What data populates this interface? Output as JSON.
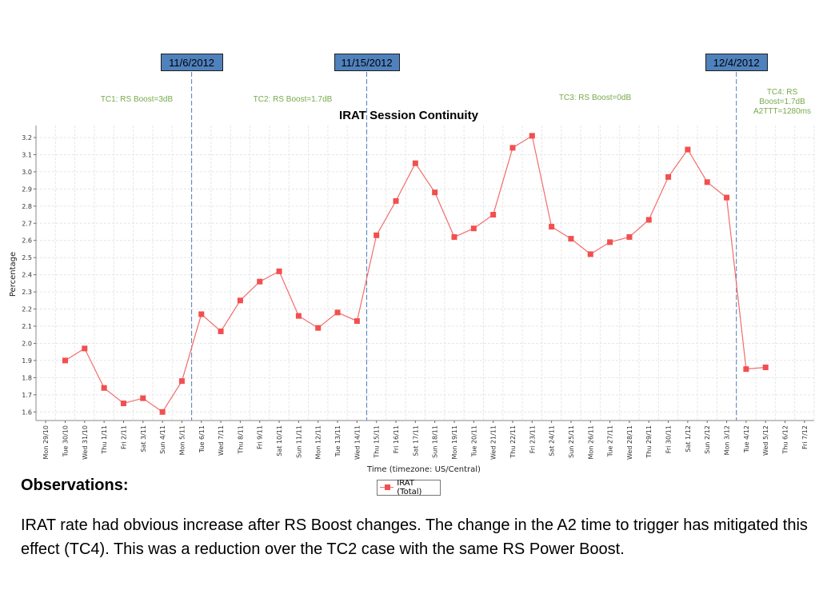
{
  "colors": {
    "series": "#f26d6d",
    "marker": "#f24f4f",
    "markerBox": "#4f81bd",
    "tcText": "#77a94a",
    "vline": "#4f81bd",
    "grid": "#e6e6e6"
  },
  "markers": [
    {
      "label": "11/6/2012",
      "x_index": 8
    },
    {
      "label": "11/15/2012",
      "x_index": 17
    },
    {
      "label": "12/4/2012",
      "x_index": 36
    }
  ],
  "test_cases": [
    {
      "lines": [
        "TC1: RS Boost=3dB"
      ]
    },
    {
      "lines": [
        "TC2: RS Boost=1.7dB"
      ]
    },
    {
      "lines": [
        "TC3: RS Boost=0dB"
      ]
    },
    {
      "lines": [
        "TC4: RS",
        "Boost=1.7dB",
        "A2TTT=1280ms"
      ]
    }
  ],
  "chart_data": {
    "type": "line",
    "title": "IRAT Session Continuity",
    "xlabel": "Time (timezone: US/Central)",
    "ylabel": "Percentage",
    "ylim": [
      1.55,
      3.27
    ],
    "yticks": [
      "1.6",
      "1.7",
      "1.8",
      "1.9",
      "2.0",
      "2.1",
      "2.2",
      "2.3",
      "2.4",
      "2.5",
      "2.6",
      "2.7",
      "2.8",
      "2.9",
      "3.0",
      "3.1",
      "3.2"
    ],
    "grid": true,
    "legend_position": "bottom",
    "categories": [
      "Mon 29/10",
      "Tue 30/10",
      "Wed 31/10",
      "Thu 1/11",
      "Fri 2/11",
      "Sat 3/11",
      "Sun 4/11",
      "Mon 5/11",
      "Tue 6/11",
      "Wed 7/11",
      "Thu 8/11",
      "Fri 9/11",
      "Sat 10/11",
      "Sun 11/11",
      "Mon 12/11",
      "Tue 13/11",
      "Wed 14/11",
      "Thu 15/11",
      "Fri 16/11",
      "Sat 17/11",
      "Sun 18/11",
      "Mon 19/11",
      "Tue 20/11",
      "Wed 21/11",
      "Thu 22/11",
      "Fri 23/11",
      "Sat 24/11",
      "Sun 25/11",
      "Mon 26/11",
      "Tue 27/11",
      "Wed 28/11",
      "Thu 29/11",
      "Fri 30/11",
      "Sat 1/12",
      "Sun 2/12",
      "Mon 3/12",
      "Tue 4/12",
      "Wed 5/12",
      "Thu 6/12",
      "Fri 7/12"
    ],
    "series": [
      {
        "name": "IRAT (Total)",
        "points": [
          [
            1.5,
            1.9
          ],
          [
            2.5,
            1.97
          ],
          [
            3.5,
            1.74
          ],
          [
            4.5,
            1.65
          ],
          [
            5.5,
            1.68
          ],
          [
            6.5,
            1.6
          ],
          [
            7.5,
            1.78
          ],
          [
            8.5,
            2.17
          ],
          [
            9.5,
            2.07
          ],
          [
            10.5,
            2.25
          ],
          [
            11.5,
            2.36
          ],
          [
            12.5,
            2.42
          ],
          [
            13.5,
            2.16
          ],
          [
            14.5,
            2.09
          ],
          [
            15.5,
            2.18
          ],
          [
            16.5,
            2.13
          ],
          [
            17.5,
            2.63
          ],
          [
            18.5,
            2.83
          ],
          [
            19.5,
            3.05
          ],
          [
            20.5,
            2.88
          ],
          [
            21.5,
            2.62
          ],
          [
            22.5,
            2.67
          ],
          [
            23.5,
            2.75
          ],
          [
            24.5,
            3.14
          ],
          [
            25.5,
            3.21
          ],
          [
            26.5,
            2.68
          ],
          [
            27.5,
            2.61
          ],
          [
            28.5,
            2.52
          ],
          [
            29.5,
            2.59
          ],
          [
            30.5,
            2.62
          ],
          [
            31.5,
            2.72
          ],
          [
            32.5,
            2.97
          ],
          [
            33.5,
            3.13
          ],
          [
            34.5,
            2.94
          ],
          [
            35.5,
            2.85
          ],
          [
            36.5,
            1.85
          ],
          [
            37.5,
            1.86
          ]
        ]
      }
    ]
  },
  "observations": {
    "title": "Observations:",
    "body": "IRAT rate had obvious increase after RS Boost changes.  The change in the A2 time to trigger has mitigated this effect (TC4).   This was a reduction over the TC2 case with the same RS Power Boost."
  }
}
